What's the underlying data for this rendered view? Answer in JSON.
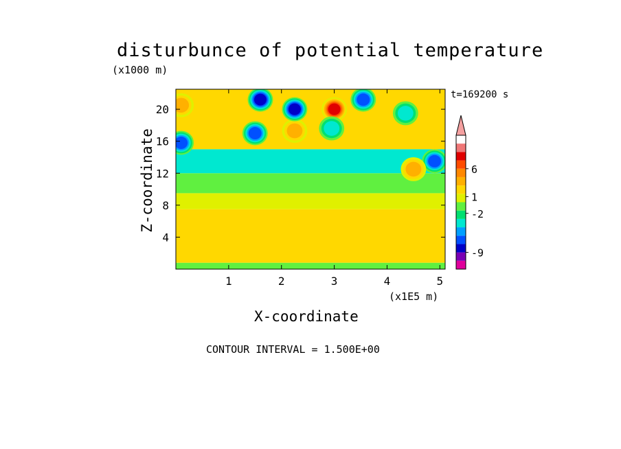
{
  "chart_data": {
    "type": "heatmap",
    "title": "disturbunce of potential temperature",
    "xlabel": "X-coordinate",
    "ylabel": "Z-coordinate",
    "x_unit": "(x1E5 m)",
    "y_unit": "(x1000 m)",
    "time_label": "t=169200 s",
    "contour_interval_label": "CONTOUR INTERVAL = 1.500E+00",
    "xlim": [
      0,
      5.1
    ],
    "ylim": [
      0,
      22.5
    ],
    "x_ticks": [
      1,
      2,
      3,
      4,
      5
    ],
    "y_ticks": [
      4,
      8,
      12,
      16,
      20
    ],
    "colorbar": {
      "tick_labels": [
        "6",
        "1",
        "-2",
        "-9"
      ],
      "tick_values": [
        6,
        1,
        -2,
        -9
      ],
      "levels": [
        -12,
        -10.5,
        -9,
        -7.5,
        -6,
        -4.5,
        -3,
        -1.5,
        0,
        1.5,
        3,
        4.5,
        6,
        7.5,
        9,
        10.5,
        12
      ],
      "colors": [
        "#e0009c",
        "#7a00b4",
        "#0000c8",
        "#0050ff",
        "#00a0ff",
        "#00e8d0",
        "#00e070",
        "#60f040",
        "#e0f000",
        "#ffd800",
        "#ffb000",
        "#ff8800",
        "#ff4c00",
        "#e00000",
        "#f07878",
        "#f4a0a0"
      ],
      "extend": "max"
    },
    "bands": [
      {
        "z_range": [
          0,
          0.8
        ],
        "approx_value": -0.5
      },
      {
        "z_range": [
          0.8,
          7.5
        ],
        "approx_value": 2.5
      },
      {
        "z_range": [
          7.5,
          9.5
        ],
        "approx_value": 0.8
      },
      {
        "z_range": [
          9.5,
          12
        ],
        "approx_value": -1.2
      },
      {
        "z_range": [
          12,
          15
        ],
        "approx_value": -3.8
      },
      {
        "z_range": [
          15,
          22.5
        ],
        "approx_value": 1.5
      }
    ],
    "features": [
      {
        "x": 3.0,
        "z": 20.0,
        "value": 9
      },
      {
        "x": 2.25,
        "z": 17.3,
        "value": 5
      },
      {
        "x": 0.1,
        "z": 20.5,
        "value": 4
      },
      {
        "x": 1.6,
        "z": 21.2,
        "value": -9
      },
      {
        "x": 2.25,
        "z": 20.0,
        "value": -9
      },
      {
        "x": 3.55,
        "z": 21.2,
        "value": -7
      },
      {
        "x": 0.1,
        "z": 15.8,
        "value": -7
      },
      {
        "x": 1.5,
        "z": 17.0,
        "value": -7
      },
      {
        "x": 2.95,
        "z": 17.6,
        "value": -5
      },
      {
        "x": 4.9,
        "z": 13.5,
        "value": -7
      },
      {
        "x": 4.35,
        "z": 19.5,
        "value": -5
      },
      {
        "x": 4.5,
        "z": 12.5,
        "value": 4
      }
    ]
  }
}
